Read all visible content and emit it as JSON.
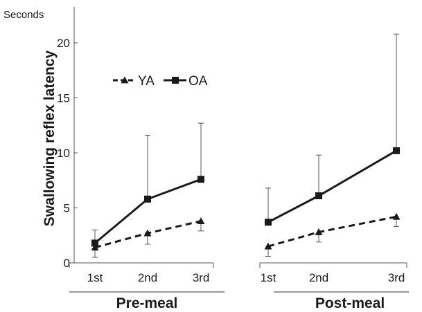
{
  "chart_data": {
    "type": "line",
    "ylabel": "Swallowing reflex latency",
    "y_unit": "Seconds",
    "ylim": [
      0,
      22
    ],
    "yticks": [
      "0",
      "5",
      "10",
      "15",
      "20"
    ],
    "legend": {
      "placement": "top-left",
      "items": [
        "YA",
        "OA"
      ]
    },
    "series_styles": {
      "YA": {
        "color": "#1a1a1a",
        "dash": "dashed",
        "marker": "triangle"
      },
      "OA": {
        "color": "#1a1a1a",
        "dash": "solid",
        "marker": "square"
      }
    },
    "panels": [
      {
        "title": "Pre-meal",
        "categories": [
          "1st",
          "2nd",
          "3rd"
        ],
        "series": [
          {
            "name": "YA",
            "values": [
              1.4,
              2.7,
              3.8
            ],
            "error": [
              0.9,
              1.0,
              0.9
            ]
          },
          {
            "name": "OA",
            "values": [
              1.8,
              5.8,
              7.6
            ],
            "error": [
              1.2,
              5.8,
              5.1
            ]
          }
        ]
      },
      {
        "title": "Post-meal",
        "categories": [
          "1st",
          "2nd",
          "3rd"
        ],
        "series": [
          {
            "name": "YA",
            "values": [
              1.5,
              2.8,
              4.2
            ],
            "error": [
              0.9,
              0.9,
              0.9
            ]
          },
          {
            "name": "OA",
            "values": [
              3.7,
              6.1,
              10.2
            ],
            "error": [
              3.1,
              3.7,
              10.6
            ]
          }
        ]
      }
    ]
  }
}
